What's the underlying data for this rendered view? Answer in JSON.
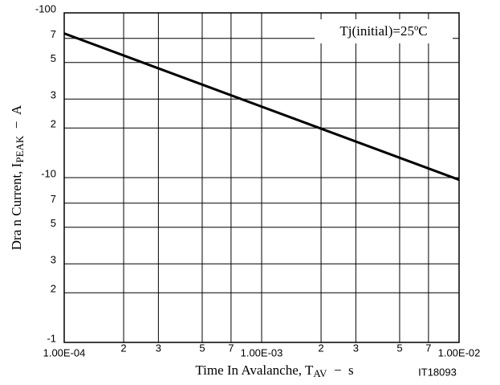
{
  "chart_data": {
    "type": "line",
    "log_x": true,
    "log_y": true,
    "grid": true,
    "x": [
      0.0001,
      0.01
    ],
    "series": [
      {
        "name": null,
        "color": "#000000",
        "values": [
          -75,
          -9.7
        ]
      }
    ],
    "xlim": [
      0.0001,
      0.01
    ],
    "ylim": [
      -1,
      -100
    ],
    "xticks": [
      {
        "value": 0.0001,
        "label": "1.00E-04"
      },
      {
        "value": 0.0002,
        "label": "2"
      },
      {
        "value": 0.0003,
        "label": "3"
      },
      {
        "value": 0.0005,
        "label": "5"
      },
      {
        "value": 0.0007,
        "label": "7"
      },
      {
        "value": 0.001,
        "label": "1.00E-03"
      },
      {
        "value": 0.002,
        "label": "2"
      },
      {
        "value": 0.003,
        "label": "3"
      },
      {
        "value": 0.005,
        "label": "5"
      },
      {
        "value": 0.007,
        "label": "7"
      },
      {
        "value": 0.01,
        "label": "1.00E-02"
      }
    ],
    "yticks": [
      -1,
      {
        "value": -2,
        "label": "2"
      },
      {
        "value": -3,
        "label": "3"
      },
      {
        "value": -5,
        "label": "5"
      },
      {
        "value": -7,
        "label": "7"
      },
      -10,
      {
        "value": -20,
        "label": "2"
      },
      {
        "value": -30,
        "label": "3"
      },
      {
        "value": -50,
        "label": "5"
      },
      {
        "value": -70,
        "label": "7"
      },
      -100
    ],
    "ylabel": {
      "text": "Dra n Current, I",
      "sub": "PEAK",
      "suffix": "  −  A"
    },
    "xlabel": {
      "text": "Time In Avalanche, T",
      "sub": "AV",
      "suffix": "  −  s"
    },
    "annotation": "Tj(initial)=25ºC",
    "note": "IT18093"
  }
}
